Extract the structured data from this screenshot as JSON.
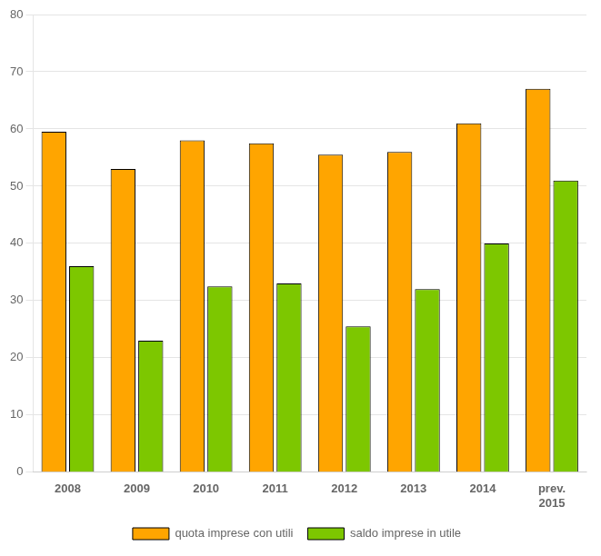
{
  "chart_data": {
    "type": "bar",
    "categories": [
      "2008",
      "2009",
      "2010",
      "2011",
      "2012",
      "2013",
      "2014",
      "2015"
    ],
    "series": [
      {
        "name": "quota imprese con utili",
        "color": "#FFA500",
        "values": [
          59.5,
          53,
          58,
          57.5,
          55.5,
          56,
          61,
          67
        ]
      },
      {
        "name": "saldo imprese in utile",
        "color": "#7DC700",
        "values": [
          36,
          23,
          32.5,
          33,
          25.5,
          32,
          40,
          51
        ]
      }
    ],
    "annotations": [
      {
        "text": "prev.",
        "category": "2015"
      }
    ],
    "ylim": [
      0,
      80
    ],
    "yticks": [
      0,
      10,
      20,
      30,
      40,
      50,
      60,
      70,
      80
    ],
    "grid": true,
    "legend": "bottom"
  }
}
